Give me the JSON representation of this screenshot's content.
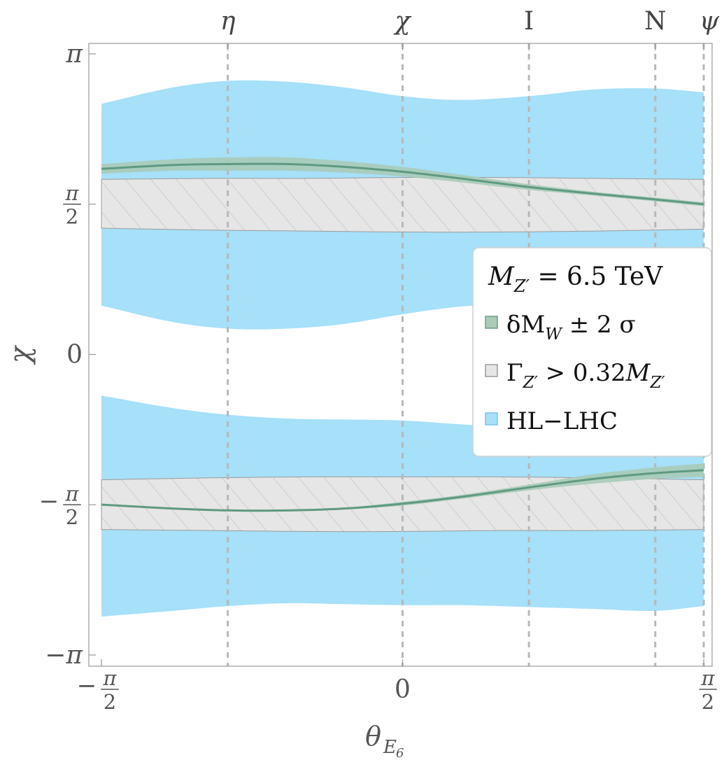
{
  "chart_data": {
    "type": "area",
    "title": "",
    "xlabel": "θ_E6",
    "ylabel": "χ",
    "xlim": [
      -1.5708,
      1.5708
    ],
    "ylim": [
      -3.1416,
      3.1416
    ],
    "x_ticks": [
      {
        "value": -1.5708,
        "sign": "−",
        "num": "π",
        "den": "2"
      },
      {
        "value": 0,
        "label": "0"
      },
      {
        "value": 1.5708,
        "num": "π",
        "den": "2"
      }
    ],
    "y_ticks": [
      {
        "value": 3.1416,
        "label": "π"
      },
      {
        "value": 1.5708,
        "num": "π",
        "den": "2"
      },
      {
        "value": 0,
        "label": "0"
      },
      {
        "value": -1.5708,
        "sign": "−",
        "num": "π",
        "den": "2"
      },
      {
        "value": -3.1416,
        "label": "−π"
      }
    ],
    "model_lines": [
      {
        "name": "η",
        "x": -0.9117
      },
      {
        "name": "χ",
        "x": 0
      },
      {
        "name": "I",
        "x": 0.6591
      },
      {
        "name": "N",
        "x": 1.3181
      },
      {
        "name": "ψ",
        "x": 1.5708
      }
    ],
    "legend": {
      "title_main": "M",
      "title_sub": "Z′",
      "title_rest": " = 6.5 TeV",
      "entries": [
        {
          "name": "δM_W ± 2σ",
          "main": "δM",
          "sub": "W",
          "rest": " ± 2 σ",
          "color": "#a9cbb8",
          "border": "#6f9d87"
        },
        {
          "name": "Γ_Z′ > 0.32M_Z′",
          "main": "Γ",
          "sub": "Z′",
          "rest": " > 0.32",
          "main2": "M",
          "sub2": "Z′",
          "color": "#e6e6e6",
          "border": "#9a9a9a"
        },
        {
          "name": "HL−LHC",
          "main": "HL−LHC",
          "color": "#a6e0f9",
          "border": "#7ec4e6"
        }
      ]
    },
    "series": [
      {
        "name": "HL-LHC upper band",
        "x": [
          -1.5708,
          -1.2,
          -0.9117,
          -0.6,
          -0.3,
          0,
          0.3,
          0.6591,
          1.0,
          1.3181,
          1.5708
        ],
        "upper": [
          2.62,
          2.79,
          2.86,
          2.85,
          2.79,
          2.7,
          2.66,
          2.7,
          2.77,
          2.78,
          2.74
        ],
        "lower": [
          0.51,
          0.34,
          0.27,
          0.27,
          0.32,
          0.42,
          0.5,
          0.53,
          0.56,
          0.62,
          0.7
        ]
      },
      {
        "name": "HL-LHC lower band",
        "x": [
          -1.5708,
          -1.2,
          -0.9117,
          -0.6,
          -0.3,
          0,
          0.3,
          0.6591,
          1.0,
          1.3181,
          1.5708
        ],
        "upper": [
          -0.43,
          -0.56,
          -0.63,
          -0.67,
          -0.68,
          -0.69,
          -0.73,
          -0.77,
          -0.78,
          -0.75,
          -0.71
        ],
        "lower": [
          -2.74,
          -2.68,
          -2.63,
          -2.6,
          -2.61,
          -2.62,
          -2.62,
          -2.64,
          -2.66,
          -2.68,
          -2.63
        ]
      },
      {
        "name": "Γ_Z′ > 0.32 M_Z′ upper",
        "x": [
          -1.5708,
          -1.0,
          -0.5,
          0,
          0.5,
          1.0,
          1.5708
        ],
        "upper": [
          1.83,
          1.84,
          1.84,
          1.85,
          1.85,
          1.84,
          1.83
        ],
        "lower": [
          1.32,
          1.3,
          1.29,
          1.28,
          1.28,
          1.29,
          1.31
        ]
      },
      {
        "name": "Γ_Z′ > 0.32 M_Z′ lower",
        "x": [
          -1.5708,
          -1.0,
          -0.5,
          0,
          0.5,
          1.0,
          1.5708
        ],
        "upper": [
          -1.31,
          -1.29,
          -1.28,
          -1.28,
          -1.28,
          -1.29,
          -1.31
        ],
        "lower": [
          -1.83,
          -1.84,
          -1.85,
          -1.85,
          -1.84,
          -1.84,
          -1.83
        ]
      },
      {
        "name": "δM_W ± 2σ upper",
        "x": [
          -1.5708,
          -1.2,
          -0.9117,
          -0.6,
          -0.3,
          0,
          0.3,
          0.6591,
          1.0,
          1.3181,
          1.5708
        ],
        "center": [
          1.94,
          1.98,
          1.99,
          1.99,
          1.96,
          1.91,
          1.84,
          1.75,
          1.68,
          1.62,
          1.57
        ],
        "width": [
          0.05,
          0.06,
          0.07,
          0.07,
          0.06,
          0.05,
          0.04,
          0.03,
          0.02,
          0.02,
          0.02
        ]
      },
      {
        "name": "δM_W ± 2σ lower",
        "x": [
          -1.5708,
          -1.2,
          -0.9117,
          -0.6,
          -0.3,
          0,
          0.3,
          0.6591,
          1.0,
          1.3181,
          1.5708
        ],
        "center": [
          -1.57,
          -1.61,
          -1.63,
          -1.63,
          -1.61,
          -1.56,
          -1.49,
          -1.39,
          -1.3,
          -1.24,
          -1.21
        ],
        "width": [
          0.01,
          0.01,
          0.01,
          0.01,
          0.01,
          0.02,
          0.02,
          0.03,
          0.05,
          0.06,
          0.07
        ]
      }
    ]
  }
}
